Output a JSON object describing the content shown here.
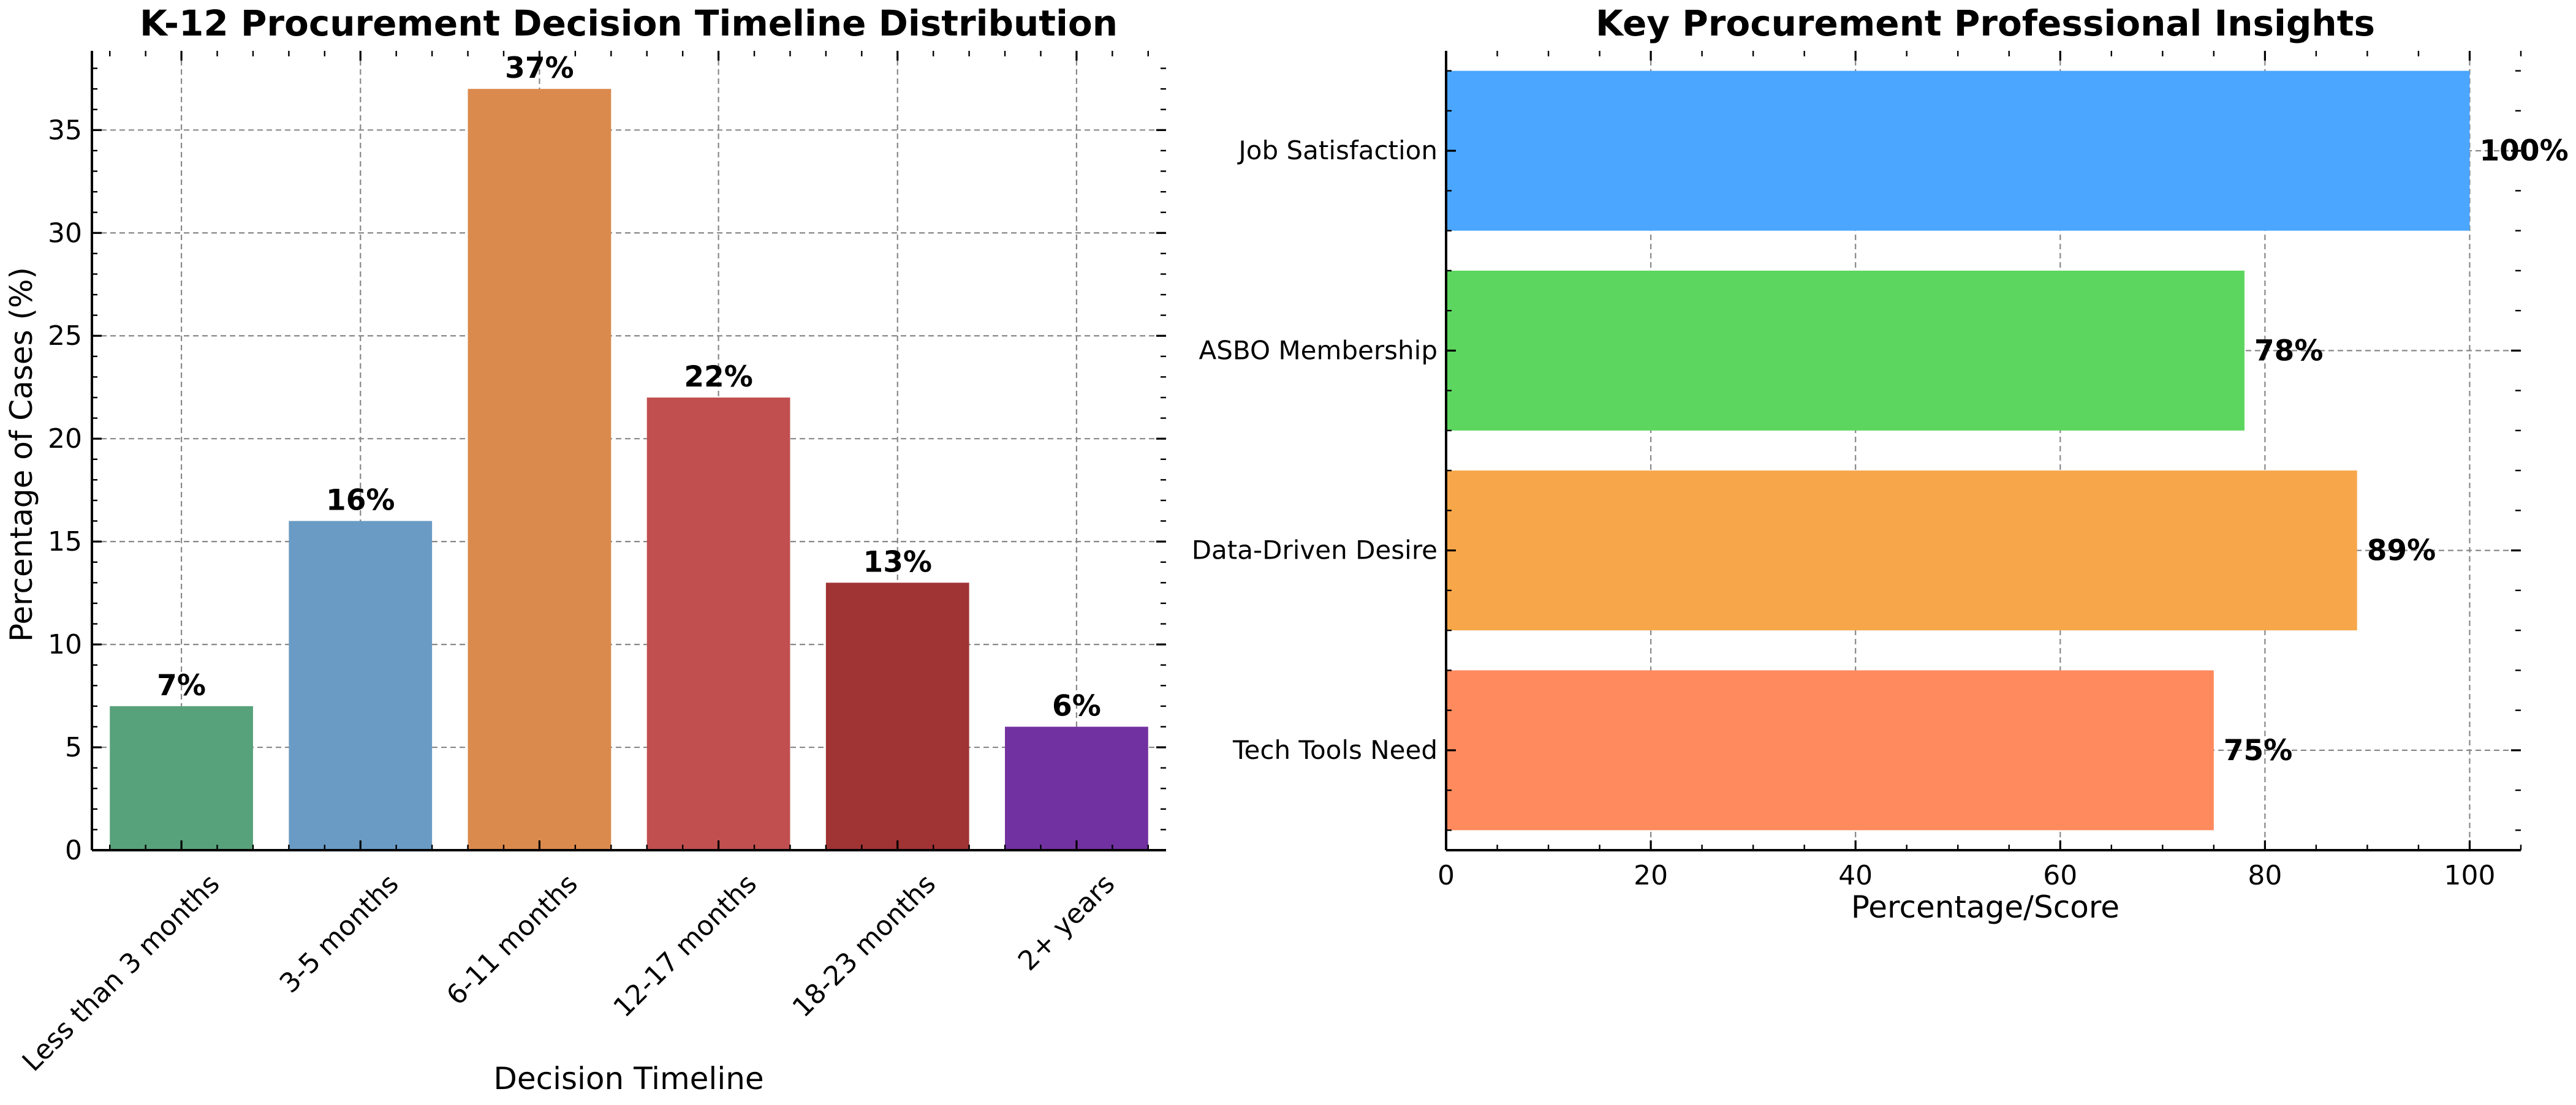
{
  "chart_data": [
    {
      "type": "bar",
      "title": "K-12 Procurement Decision Timeline Distribution",
      "xlabel": "Decision Timeline",
      "ylabel": "Percentage of Cases (%)",
      "categories": [
        "Less than 3 months",
        "3-5 months",
        "6-11 months",
        "12-17 months",
        "18-23 months",
        "2+ years"
      ],
      "values": [
        7,
        16,
        37,
        22,
        13,
        6
      ],
      "value_labels": [
        "7%",
        "16%",
        "37%",
        "22%",
        "13%",
        "6%"
      ],
      "colors": [
        "#58a27b",
        "#6a9bc4",
        "#db8a4d",
        "#c14f4f",
        "#a03333",
        "#7131a0"
      ],
      "yticks": [
        0,
        5,
        10,
        15,
        20,
        25,
        30,
        35
      ],
      "ytick_labels": [
        "0",
        "5",
        "10",
        "15",
        "20",
        "25",
        "30",
        "35"
      ],
      "ylim": [
        0,
        38.85
      ],
      "grid": true
    },
    {
      "type": "barh",
      "title": "Key Procurement Professional Insights",
      "xlabel": "Percentage/Score",
      "ylabel": "",
      "categories": [
        "Tech Tools Need",
        "Data-Driven Desire",
        "ASBO Membership",
        "Job Satisfaction"
      ],
      "values": [
        75,
        89,
        78,
        100
      ],
      "value_labels": [
        "75%",
        "89%",
        "78%",
        "100%"
      ],
      "colors": [
        "#ff8a5e",
        "#f7a74a",
        "#5cd65e",
        "#4aa6ff"
      ],
      "xticks": [
        0,
        20,
        40,
        60,
        80,
        100
      ],
      "xtick_labels": [
        "0",
        "20",
        "40",
        "60",
        "80",
        "100"
      ],
      "xlim": [
        0,
        105
      ],
      "grid": true
    }
  ]
}
